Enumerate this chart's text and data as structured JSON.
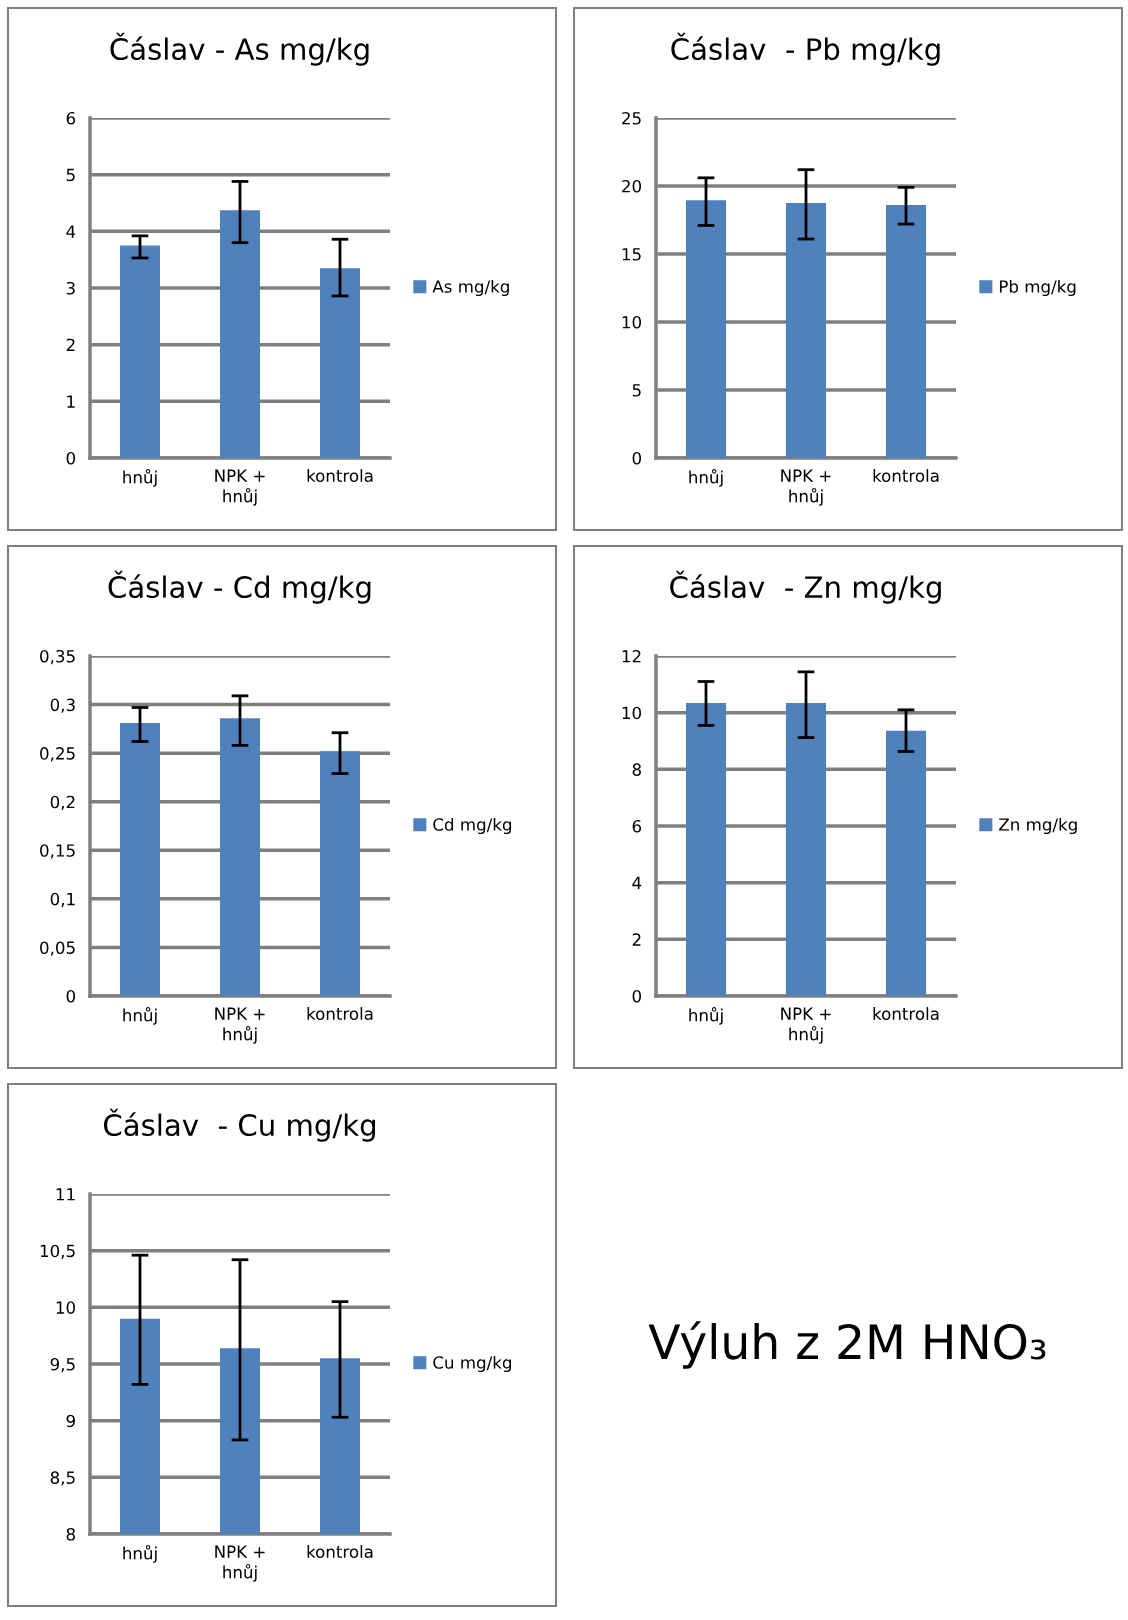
{
  "chart_data": [
    {
      "type": "bar",
      "title": "Čáslav - As mg/kg",
      "categories": [
        "hnůj",
        "NPK +\nhnůj",
        "kontrola"
      ],
      "series": [
        {
          "name": "As mg/kg",
          "color": "#4f81bd",
          "values": [
            3.75,
            4.37,
            3.35
          ],
          "errors": [
            [
              3.53,
              3.92
            ],
            [
              3.8,
              4.88
            ],
            [
              2.86,
              3.86
            ]
          ]
        }
      ],
      "ylim": [
        0,
        6
      ],
      "yticks": [
        0,
        1,
        2,
        3,
        4,
        5,
        6
      ],
      "grid": "y",
      "legend": "right"
    },
    {
      "type": "bar",
      "title": "Čáslav  - Pb mg/kg",
      "categories": [
        "hnůj",
        "NPK +\nhnůj",
        "kontrola"
      ],
      "series": [
        {
          "name": "Pb mg/kg",
          "color": "#4f81bd",
          "values": [
            18.95,
            18.75,
            18.6
          ],
          "errors": [
            [
              17.1,
              20.6
            ],
            [
              16.1,
              21.2
            ],
            [
              17.2,
              19.9
            ]
          ]
        }
      ],
      "ylim": [
        0,
        25
      ],
      "yticks": [
        0,
        5,
        10,
        15,
        20,
        25
      ],
      "grid": "y",
      "legend": "right"
    },
    {
      "type": "bar",
      "title": "Čáslav - Cd mg/kg",
      "categories": [
        "hnůj",
        "NPK +\nhnůj",
        "kontrola"
      ],
      "series": [
        {
          "name": "Cd mg/kg",
          "color": "#4f81bd",
          "values": [
            0.281,
            0.286,
            0.252
          ],
          "errors": [
            [
              0.262,
              0.297
            ],
            [
              0.258,
              0.309
            ],
            [
              0.229,
              0.271
            ]
          ]
        }
      ],
      "ylim": [
        0,
        0.35
      ],
      "yticks": [
        0,
        {
          "value": 0.05,
          "label": "0,05"
        },
        {
          "value": 0.1,
          "label": "0,1"
        },
        {
          "value": 0.15,
          "label": "0,15"
        },
        {
          "value": 0.2,
          "label": "0,2"
        },
        {
          "value": 0.25,
          "label": "0,25"
        },
        {
          "value": 0.3,
          "label": "0,3"
        },
        {
          "value": 0.35,
          "label": "0,35"
        }
      ],
      "grid": "y",
      "legend": "right"
    },
    {
      "type": "bar",
      "title": "Čáslav  - Zn mg/kg",
      "categories": [
        "hnůj",
        "NPK +\nhnůj",
        "kontrola"
      ],
      "series": [
        {
          "name": "Zn mg/kg",
          "color": "#4f81bd",
          "values": [
            10.34,
            10.34,
            9.36
          ],
          "errors": [
            [
              9.55,
              11.1
            ],
            [
              9.12,
              11.44
            ],
            [
              8.63,
              10.1
            ]
          ]
        }
      ],
      "ylim": [
        0,
        12
      ],
      "yticks": [
        0,
        2,
        4,
        6,
        8,
        10,
        12
      ],
      "grid": "y",
      "legend": "right"
    },
    {
      "type": "bar",
      "title": "Čáslav  - Cu mg/kg",
      "categories": [
        "hnůj",
        "NPK +\nhnůj",
        "kontrola"
      ],
      "series": [
        {
          "name": "Cu mg/kg",
          "color": "#4f81bd",
          "values": [
            9.9,
            9.64,
            9.55
          ],
          "errors": [
            [
              9.32,
              10.46
            ],
            [
              8.83,
              10.42
            ],
            [
              9.03,
              10.05
            ]
          ]
        }
      ],
      "ylim": [
        8,
        11
      ],
      "yticks": [
        8,
        {
          "value": 8.5,
          "label": "8,5"
        },
        9,
        {
          "value": 9.5,
          "label": "9,5"
        },
        10,
        {
          "value": 10.5,
          "label": "10,5"
        },
        11
      ],
      "grid": "y",
      "legend": "right"
    },
    {
      "type": "other",
      "annotations": [
        "Výluh z 2M HNO₃"
      ]
    }
  ]
}
